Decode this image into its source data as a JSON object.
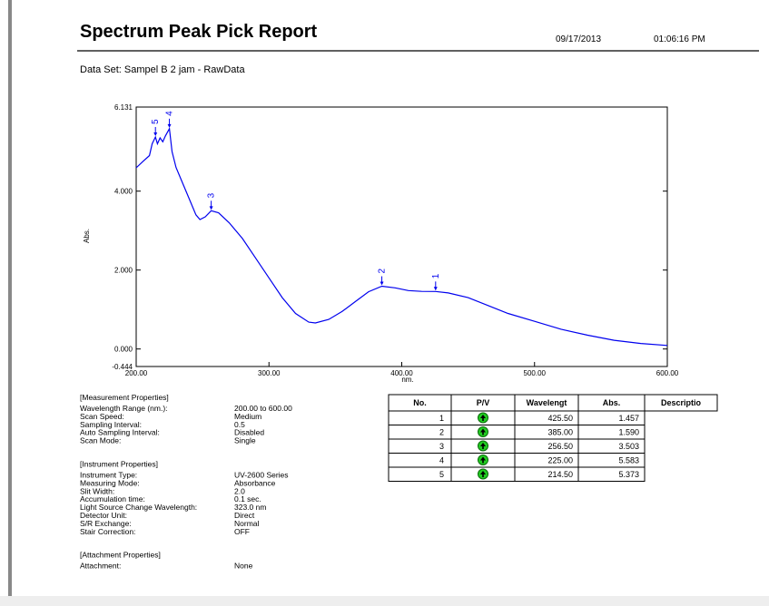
{
  "header": {
    "title": "Spectrum Peak Pick Report",
    "date": "09/17/2013",
    "time": "01:06:16 PM"
  },
  "dataset": "Data Set: Sampel B 2 jam - RawData",
  "chart_data": {
    "type": "line",
    "xlabel": "nm.",
    "ylabel": "Abs.",
    "color": "#0000ee",
    "x": [
      200,
      205,
      210,
      212,
      214.5,
      216,
      218,
      220,
      222,
      225,
      227,
      230,
      235,
      240,
      245,
      248,
      252,
      256.5,
      262,
      270,
      280,
      290,
      300,
      310,
      320,
      330,
      335,
      345,
      355,
      365,
      375,
      385,
      395,
      405,
      415,
      425.5,
      435,
      450,
      465,
      480,
      500,
      520,
      540,
      560,
      580,
      600
    ],
    "values": [
      4.59,
      4.75,
      4.9,
      5.2,
      5.373,
      5.2,
      5.35,
      5.25,
      5.4,
      5.583,
      5.0,
      4.6,
      4.2,
      3.8,
      3.4,
      3.28,
      3.35,
      3.503,
      3.45,
      3.2,
      2.8,
      2.3,
      1.8,
      1.3,
      0.9,
      0.68,
      0.66,
      0.75,
      0.95,
      1.2,
      1.45,
      1.59,
      1.55,
      1.48,
      1.46,
      1.457,
      1.42,
      1.3,
      1.1,
      0.9,
      0.7,
      0.5,
      0.35,
      0.22,
      0.14,
      0.09
    ],
    "xlim": [
      200,
      600
    ],
    "ylim": [
      -0.444,
      6.131
    ],
    "xticks": [
      {
        "value": 200,
        "label": "200.00"
      },
      {
        "value": 300,
        "label": "300.00"
      },
      {
        "value": 400,
        "label": "400.00"
      },
      {
        "value": 500,
        "label": "500.00"
      },
      {
        "value": 600,
        "label": "600.00"
      }
    ],
    "yticks": [
      -0.444,
      {
        "value": 0,
        "label": "0.000"
      },
      {
        "value": 2,
        "label": "2.000"
      },
      {
        "value": 4,
        "label": "4.000"
      },
      6.131
    ],
    "peaks": [
      {
        "label": "1",
        "x": 425.5,
        "y": 1.457
      },
      {
        "label": "2",
        "x": 385,
        "y": 1.59
      },
      {
        "label": "3",
        "x": 256.5,
        "y": 3.503
      },
      {
        "label": "4",
        "x": 225,
        "y": 5.583
      },
      {
        "label": "5",
        "x": 214.5,
        "y": 5.373
      }
    ]
  },
  "properties": [
    {
      "heading": "[Measurement Properties]",
      "items": [
        [
          "Wavelength Range (nm.):",
          "200.00 to 600.00"
        ],
        [
          "Scan Speed:",
          "Medium"
        ],
        [
          "Sampling Interval:",
          "0.5"
        ],
        [
          "Auto Sampling Interval:",
          "Disabled"
        ],
        [
          "Scan Mode:",
          "Single"
        ]
      ]
    },
    {
      "heading": "[Instrument Properties]",
      "items": [
        [
          "Instrument Type:",
          "UV-2600 Series"
        ],
        [
          "Measuring Mode:",
          "Absorbance"
        ],
        [
          "Slit Width:",
          "2.0"
        ],
        [
          "Accumulation time:",
          "0.1 sec."
        ],
        [
          "Light Source Change Wavelength:",
          "323.0 nm"
        ],
        [
          "Detector Unit:",
          "Direct"
        ],
        [
          "S/R Exchange:",
          "Normal"
        ],
        [
          "Stair Correction:",
          "OFF"
        ]
      ]
    },
    {
      "heading": "[Attachment Properties]",
      "items": [
        [
          "Attachment:",
          "None"
        ]
      ]
    }
  ],
  "table": {
    "columns": [
      "No.",
      "P/V",
      "Wavelengt",
      "Abs.",
      "Descriptio"
    ],
    "rows": [
      [
        "1",
        "425.50",
        "1.457"
      ],
      [
        "2",
        "385.00",
        "1.590"
      ],
      [
        "3",
        "256.50",
        "3.503"
      ],
      [
        "4",
        "225.00",
        "5.583"
      ],
      [
        "5",
        "214.50",
        "5.373"
      ]
    ]
  }
}
